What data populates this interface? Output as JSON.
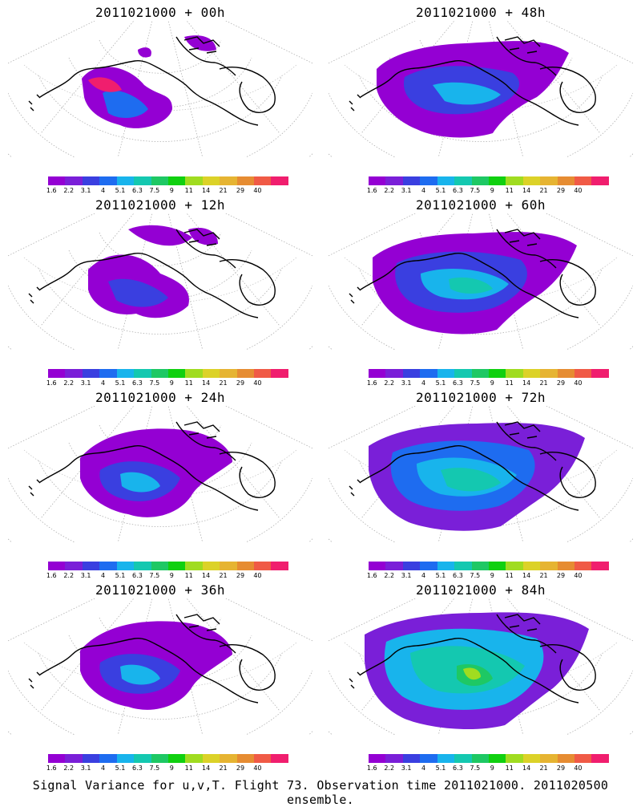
{
  "footer": "Signal Variance for u,v,T. Flight 73. Observation time 2011021000. 2011020500 ensemble.",
  "colorbar": {
    "ticks": [
      "1.6",
      "2.2",
      "3.1",
      "4",
      "5.1",
      "6.3",
      "7.5",
      "9",
      "11",
      "14",
      "21",
      "29",
      "40"
    ],
    "colors": [
      "#9400d3",
      "#7a1fd8",
      "#3a3fe0",
      "#1e6cf0",
      "#18b4ec",
      "#14c8b0",
      "#1ec864",
      "#10d010",
      "#a0dc20",
      "#dcd228",
      "#e6b432",
      "#e68c32",
      "#f05a46",
      "#f01e6e"
    ]
  },
  "panels": [
    {
      "title": "2011021000 + 00h",
      "level": 0
    },
    {
      "title": "2011021000 + 48h",
      "level": 3
    },
    {
      "title": "2011021000 + 12h",
      "level": 1
    },
    {
      "title": "2011021000 + 60h",
      "level": 4
    },
    {
      "title": "2011021000 + 24h",
      "level": 2
    },
    {
      "title": "2011021000 + 72h",
      "level": 5
    },
    {
      "title": "2011021000 + 36h",
      "level": 2
    },
    {
      "title": "2011021000 + 84h",
      "level": 6
    }
  ]
}
